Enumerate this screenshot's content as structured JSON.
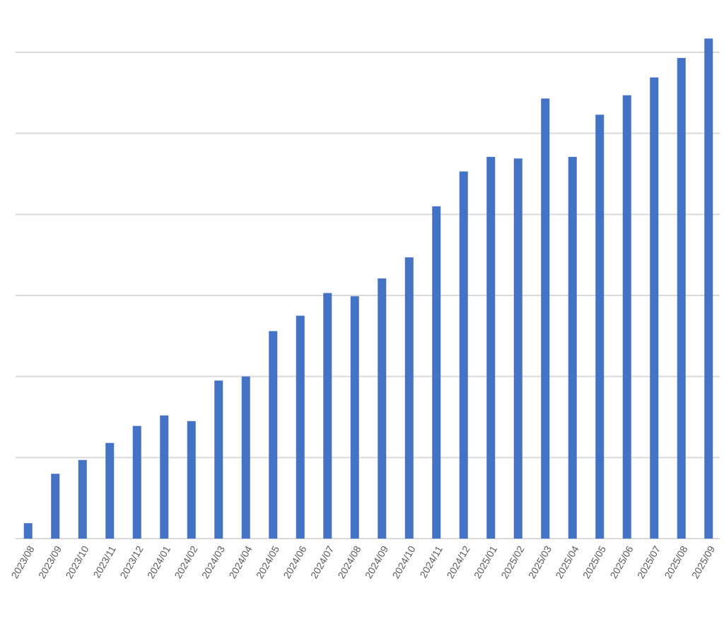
{
  "chart_data": {
    "type": "bar",
    "categories": [
      "2023/08",
      "2023/09",
      "2023/10",
      "2023/11",
      "2023/12",
      "2024/01",
      "2024/02",
      "2024/03",
      "2024/04",
      "2024/05",
      "2024/06",
      "2024/07",
      "2024/08",
      "2024/09",
      "2024/10",
      "2024/11",
      "2024/12",
      "2025/01",
      "2025/02",
      "2025/03",
      "2025/04",
      "2025/05",
      "2025/06",
      "2025/07",
      "2025/08",
      "2025/09"
    ],
    "values": [
      0.19,
      0.8,
      0.97,
      1.18,
      1.39,
      1.52,
      1.45,
      1.95,
      2.0,
      2.56,
      2.75,
      3.03,
      2.99,
      3.21,
      3.47,
      4.1,
      4.53,
      4.71,
      4.69,
      5.43,
      4.71,
      5.23,
      5.47,
      5.69,
      5.93,
      6.17
    ],
    "ylim": [
      0,
      6
    ],
    "gridlines": true,
    "y_tick_labels_visible": false,
    "legend": "none",
    "colors": {
      "bar": "#4472c4",
      "grid": "#d9d9d9",
      "text": "#595959"
    }
  }
}
